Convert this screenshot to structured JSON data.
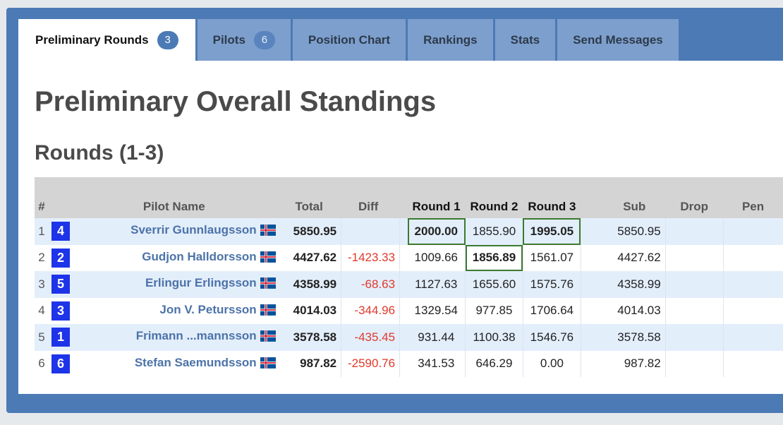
{
  "tabs": [
    {
      "label": "Preliminary Rounds",
      "badge": "3"
    },
    {
      "label": "Pilots",
      "badge": "6"
    },
    {
      "label": "Position Chart"
    },
    {
      "label": "Rankings"
    },
    {
      "label": "Stats"
    },
    {
      "label": "Send Messages"
    }
  ],
  "page": {
    "title": "Preliminary Overall Standings",
    "subtitle": "Rounds (1-3)"
  },
  "table": {
    "headers": {
      "num": "#",
      "pilot": "Pilot Name",
      "total": "Total",
      "diff": "Diff",
      "round1": "Round 1",
      "round2": "Round 2",
      "round3": "Round 3",
      "sub": "Sub",
      "drop": "Drop",
      "pen": "Pen"
    },
    "rows": [
      {
        "pos": "1",
        "bib": "4",
        "name": "Sverrir Gunnlaugsson",
        "country": "Iceland",
        "total": "5850.95",
        "diff": "",
        "r1": "2000.00",
        "r2": "1855.90",
        "r3": "1995.05",
        "sub": "5850.95",
        "drop": "",
        "pen": ""
      },
      {
        "pos": "2",
        "bib": "2",
        "name": "Gudjon Halldorsson",
        "country": "Iceland",
        "total": "4427.62",
        "diff": "-1423.33",
        "r1": "1009.66",
        "r2": "1856.89",
        "r3": "1561.07",
        "sub": "4427.62",
        "drop": "",
        "pen": ""
      },
      {
        "pos": "3",
        "bib": "5",
        "name": "Erlingur Erlingsson",
        "country": "Iceland",
        "total": "4358.99",
        "diff": "-68.63",
        "r1": "1127.63",
        "r2": "1655.60",
        "r3": "1575.76",
        "sub": "4358.99",
        "drop": "",
        "pen": ""
      },
      {
        "pos": "4",
        "bib": "3",
        "name": "Jon V. Petursson",
        "country": "Iceland",
        "total": "4014.03",
        "diff": "-344.96",
        "r1": "1329.54",
        "r2": "977.85",
        "r3": "1706.64",
        "sub": "4014.03",
        "drop": "",
        "pen": ""
      },
      {
        "pos": "5",
        "bib": "1",
        "name": "Frimann ...mannsson",
        "country": "Iceland",
        "total": "3578.58",
        "diff": "-435.45",
        "r1": "931.44",
        "r2": "1100.38",
        "r3": "1546.76",
        "sub": "3578.58",
        "drop": "",
        "pen": ""
      },
      {
        "pos": "6",
        "bib": "6",
        "name": "Stefan Saemundsson",
        "country": "Iceland",
        "total": "987.82",
        "diff": "-2590.76",
        "r1": "341.53",
        "r2": "646.29",
        "r3": "0.00",
        "sub": "987.82",
        "drop": "",
        "pen": ""
      }
    ]
  },
  "colors": {
    "accent": "#4c7ab5",
    "bib": "#1e34e8",
    "pilot_link": "#4c73a8",
    "negative_diff": "#e0392b",
    "round_winner_outline": "#3c7a2f",
    "row_stripe": "#e3eefb"
  },
  "icons": {
    "flag": "iceland-flag-icon"
  }
}
